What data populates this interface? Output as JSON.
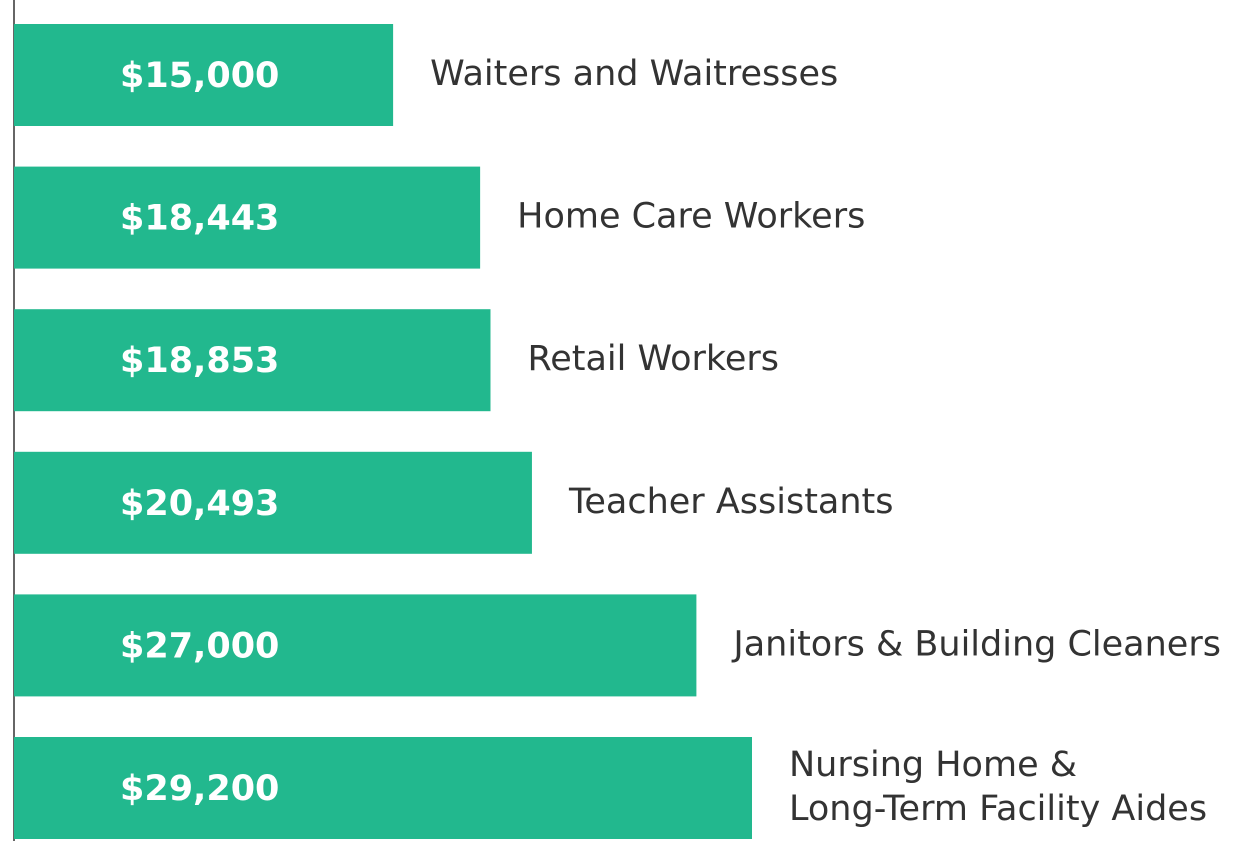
{
  "chart_data": {
    "type": "bar",
    "orientation": "horizontal",
    "categories": [
      "Waiters and Waitresses",
      "Home Care Workers",
      "Retail Workers",
      "Teacher Assistants",
      "Janitors & Building Cleaners",
      "Nursing Home &\nLong-Term Facility Aides"
    ],
    "values": [
      15000,
      18443,
      18853,
      20493,
      27000,
      29200
    ],
    "value_labels": [
      "$15,000",
      "$18,443",
      "$18,853",
      "$20,493",
      "$27,000",
      "$29,200"
    ],
    "color": "#22b88e"
  }
}
